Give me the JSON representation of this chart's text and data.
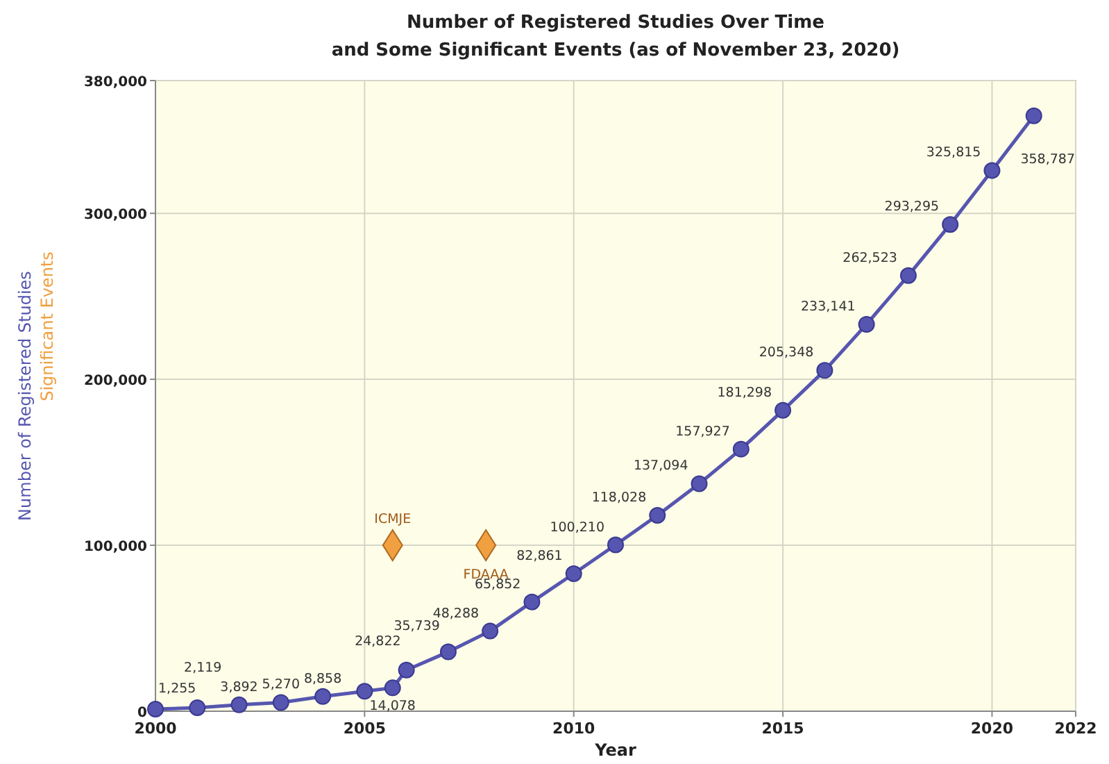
{
  "chart_data": {
    "type": "line",
    "title": "Number of Registered Studies Over Time\nand Some Significant Events (as of November 23, 2020)",
    "xlabel": "Year",
    "ylabel": "Number of Registered Studies",
    "xlim": [
      2000,
      2022
    ],
    "xticks": [
      2000,
      2005,
      2010,
      2015,
      2020,
      2022
    ],
    "ylim": [
      0,
      380000
    ],
    "yticks": [
      {
        "value": 0,
        "label": "0"
      },
      {
        "value": 100000,
        "label": "100,000"
      },
      {
        "value": 200000,
        "label": "200,000"
      },
      {
        "value": 300000,
        "label": "300,000"
      },
      {
        "value": 380000,
        "label": "380,000"
      }
    ],
    "grid": true,
    "marker": "circle",
    "line_style": "solid",
    "series": [
      {
        "color": "#5656b0",
        "x": [
          2000,
          2001,
          2002,
          2003,
          2004,
          2005,
          2005.67,
          2006,
          2007,
          2008,
          2009,
          2010,
          2011,
          2012,
          2013,
          2014,
          2015,
          2016,
          2017,
          2018,
          2019,
          2020,
          2021
        ],
        "values": [
          1255,
          2119,
          3892,
          5270,
          8858,
          12000,
          14078,
          24822,
          35739,
          48288,
          65852,
          82861,
          100210,
          118028,
          137094,
          157927,
          181298,
          205348,
          233141,
          262523,
          293295,
          325815,
          358787
        ],
        "value_labels": [
          "1,255",
          "2,119",
          "3,892",
          "5,270",
          "8,858",
          null,
          "14,078",
          "24,822",
          "35,739",
          "48,288",
          "65,852",
          "82,861",
          "100,210",
          "118,028",
          "137,094",
          "157,927",
          "181,298",
          "205,348",
          "233,141",
          "262,523",
          "293,295",
          "325,815",
          "358,787"
        ]
      },
      {
        "type": "scatter",
        "name": "Significant Events",
        "color": "#f0a040",
        "marker": "diamond",
        "x": [
          2005.67,
          2007.9
        ],
        "values": [
          100000,
          100000
        ]
      }
    ],
    "annotations": [
      {
        "text": "ICMJE",
        "x": 2005.67,
        "y": 100000
      },
      {
        "text": "FDAAA",
        "x": 2007.9,
        "y": 100000
      }
    ]
  }
}
